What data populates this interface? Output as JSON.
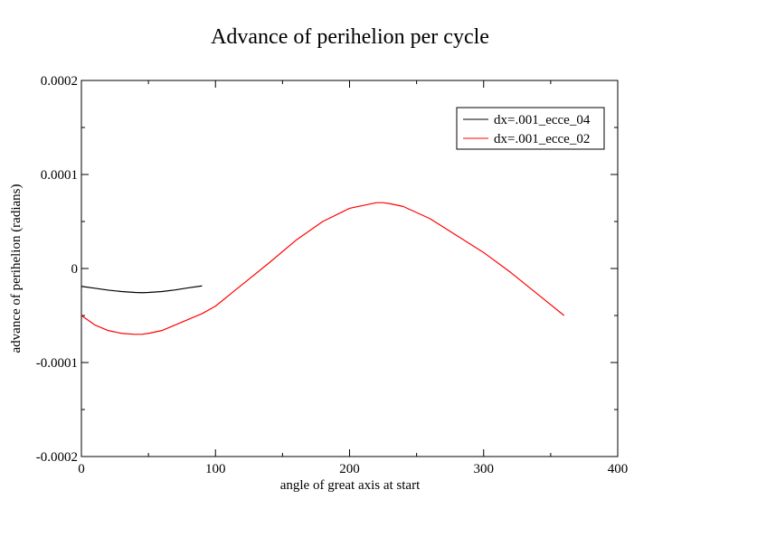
{
  "chart_data": {
    "type": "line",
    "title": "Advance of perihelion per cycle",
    "xlabel": "angle of great axis at start",
    "ylabel": "advance of perihelion  (radians)",
    "xlim": [
      0,
      400
    ],
    "ylim": [
      -0.0002,
      0.0002
    ],
    "x_ticks": [
      0,
      100,
      200,
      300,
      400
    ],
    "x_tick_labels": [
      "0",
      "100",
      "200",
      "300",
      "400"
    ],
    "y_ticks": [
      -0.0002,
      -0.0001,
      0,
      0.0001,
      0.0002
    ],
    "y_tick_labels": [
      "-0.0002",
      "-0.0001",
      "0",
      "0.0001",
      "0.0002"
    ],
    "grid": false,
    "legend_position": "top-right",
    "series": [
      {
        "name": "dx=.001_ecce_04",
        "color": "#000000",
        "x": [
          0,
          10,
          20,
          30,
          40,
          45,
          50,
          60,
          70,
          80,
          90
        ],
        "y": [
          -1.9e-05,
          -2.1e-05,
          -2.3e-05,
          -2.45e-05,
          -2.55e-05,
          -2.57e-05,
          -2.55e-05,
          -2.45e-05,
          -2.28e-05,
          -2.05e-05,
          -1.85e-05
        ]
      },
      {
        "name": "dx=.001_ecce_02",
        "color": "#ff0000",
        "x": [
          0,
          10,
          20,
          30,
          40,
          45,
          50,
          60,
          70,
          80,
          90,
          100,
          120,
          140,
          160,
          180,
          200,
          220,
          225,
          230,
          240,
          260,
          280,
          300,
          320,
          340,
          360
        ],
        "y": [
          -5e-05,
          -6e-05,
          -6.6e-05,
          -6.9e-05,
          -7e-05,
          -7e-05,
          -6.9e-05,
          -6.6e-05,
          -6e-05,
          -5.4e-05,
          -4.8e-05,
          -4e-05,
          -1.7e-05,
          6e-06,
          3e-05,
          5e-05,
          6.4e-05,
          7e-05,
          7e-05,
          6.9e-05,
          6.6e-05,
          5.3e-05,
          3.5e-05,
          1.7e-05,
          -4e-06,
          -2.7e-05,
          -5e-05
        ]
      }
    ]
  }
}
